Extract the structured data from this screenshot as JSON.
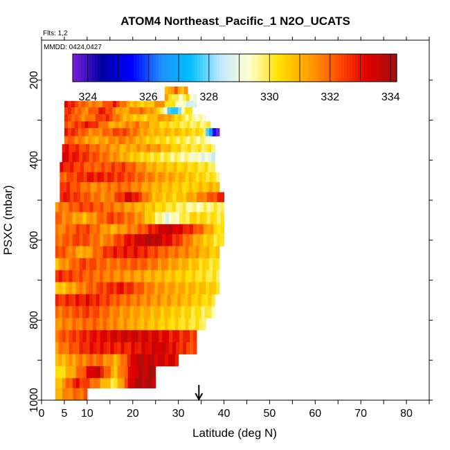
{
  "chart_data": {
    "type": "heatmap",
    "title": "ATOM4 Northeast_Pacific_1 N2O_UCATS",
    "subtitle_flights": "Flts: 1,2",
    "subtitle_dates": "MMDD: 0424,0427",
    "xlabel": "Latitude (deg N)",
    "ylabel": "PSXC (mbar)",
    "xlim": [
      0,
      85
    ],
    "ylim": [
      1000,
      100
    ],
    "x_ticks": [
      0,
      5,
      10,
      20,
      30,
      40,
      50,
      60,
      70,
      80
    ],
    "y_ticks": [
      200,
      400,
      600,
      800,
      1000
    ],
    "colorbar": {
      "min": 323.5,
      "max": 334.2,
      "ticks": [
        324,
        326,
        328,
        330,
        332,
        334
      ],
      "colors": [
        "#7a1fe0",
        "#0000a0",
        "#0000ff",
        "#1e90ff",
        "#00c0ff",
        "#bfe8ff",
        "#ffffd0",
        "#ffe000",
        "#ffa000",
        "#ff5000",
        "#e00000",
        "#a01010"
      ]
    },
    "marker": {
      "latitude": 34.5,
      "symbol": "arrow-up"
    },
    "bands": [
      {
        "p_top": 216,
        "p_bot": 235,
        "lat0": 27,
        "lat1": 32,
        "pattern": [
          330.5,
          331.5,
          332.0,
          330.8,
          331.2
        ]
      },
      {
        "p_top": 235,
        "p_bot": 252,
        "lat0": 27,
        "lat1": 34,
        "pattern": [
          331.0,
          330.0,
          329.5,
          330.2,
          329.0
        ]
      },
      {
        "p_top": 252,
        "p_bot": 268,
        "lat0": 5,
        "lat1": 27,
        "pattern": [
          333.2,
          332.0,
          331.5,
          332.8,
          331.0,
          330.5,
          331.8
        ]
      },
      {
        "p_top": 252,
        "p_bot": 268,
        "lat0": 27,
        "lat1": 34,
        "pattern": [
          330.5,
          329.8,
          329.0,
          328.5
        ]
      },
      {
        "p_top": 268,
        "p_bot": 285,
        "lat0": 5,
        "lat1": 26,
        "pattern": [
          332.8,
          331.5,
          333.0,
          331.0,
          332.0,
          330.8
        ]
      },
      {
        "p_top": 268,
        "p_bot": 285,
        "lat0": 26,
        "lat1": 33,
        "pattern": [
          330.0,
          328.0,
          327.2,
          329.5,
          330.5
        ]
      },
      {
        "p_top": 285,
        "p_bot": 303,
        "lat0": 5,
        "lat1": 36,
        "pattern": [
          332.5,
          331.5,
          332.8,
          331.0,
          330.5,
          331.5,
          330.0,
          329.2
        ]
      },
      {
        "p_top": 303,
        "p_bot": 320,
        "lat0": 5,
        "lat1": 37,
        "pattern": [
          332.0,
          333.0,
          331.0,
          331.8,
          330.5,
          330.0,
          329.8
        ]
      },
      {
        "p_top": 320,
        "p_bot": 340,
        "lat0": 5,
        "lat1": 36,
        "pattern": [
          333.0,
          331.5,
          332.5,
          331.0,
          330.8,
          330.2
        ]
      },
      {
        "p_top": 320,
        "p_bot": 340,
        "lat0": 36,
        "lat1": 39,
        "pattern": [
          328.0,
          323.8
        ]
      },
      {
        "p_top": 340,
        "p_bot": 360,
        "lat0": 5,
        "lat1": 37,
        "pattern": [
          332.2,
          331.0,
          331.8,
          330.5,
          330.0,
          329.5
        ]
      },
      {
        "p_top": 360,
        "p_bot": 380,
        "lat0": 4.5,
        "lat1": 38,
        "pattern": [
          333.0,
          332.0,
          331.0,
          331.5,
          330.2,
          330.0
        ]
      },
      {
        "p_top": 380,
        "p_bot": 405,
        "lat0": 4.5,
        "lat1": 38,
        "pattern": [
          333.2,
          332.5,
          331.5,
          330.5,
          330.0,
          329.5,
          328.8
        ]
      },
      {
        "p_top": 405,
        "p_bot": 430,
        "lat0": 4,
        "lat1": 38,
        "pattern": [
          333.0,
          332.0,
          332.5,
          331.0,
          330.5,
          330.0
        ]
      },
      {
        "p_top": 430,
        "p_bot": 455,
        "lat0": 4,
        "lat1": 39,
        "pattern": [
          332.0,
          333.0,
          332.5,
          331.5,
          330.8,
          330.0
        ]
      },
      {
        "p_top": 455,
        "p_bot": 480,
        "lat0": 4,
        "lat1": 39,
        "pattern": [
          332.8,
          331.5,
          332.0,
          331.0,
          330.5,
          331.0
        ]
      },
      {
        "p_top": 480,
        "p_bot": 505,
        "lat0": 4,
        "lat1": 40,
        "pattern": [
          333.0,
          332.2,
          331.5,
          333.5,
          331.0,
          330.5,
          331.5,
          332.8
        ]
      },
      {
        "p_top": 505,
        "p_bot": 530,
        "lat0": 3,
        "lat1": 40,
        "pattern": [
          331.5,
          332.5,
          331.8,
          331.0,
          330.2,
          329.5,
          330.0
        ]
      },
      {
        "p_top": 530,
        "p_bot": 560,
        "lat0": 3,
        "lat1": 40,
        "pattern": [
          332.0,
          331.0,
          332.5,
          331.5,
          329.0,
          330.5,
          330.0
        ]
      },
      {
        "p_top": 560,
        "p_bot": 585,
        "lat0": 3,
        "lat1": 40,
        "pattern": [
          331.5,
          332.5,
          331.0,
          332.0,
          333.8,
          332.5,
          330.0
        ]
      },
      {
        "p_top": 585,
        "p_bot": 615,
        "lat0": 3,
        "lat1": 40,
        "pattern": [
          331.8,
          332.5,
          331.5,
          333.0,
          334.0,
          332.8,
          331.0,
          330.0
        ]
      },
      {
        "p_top": 615,
        "p_bot": 645,
        "lat0": 3,
        "lat1": 39,
        "pattern": [
          332.5,
          331.0,
          332.8,
          333.0,
          332.0,
          331.5,
          330.5
        ]
      },
      {
        "p_top": 645,
        "p_bot": 675,
        "lat0": 3,
        "lat1": 39,
        "pattern": [
          331.0,
          332.5,
          331.8,
          332.2,
          331.5,
          330.8,
          330.0
        ]
      },
      {
        "p_top": 675,
        "p_bot": 705,
        "lat0": 3,
        "lat1": 39,
        "pattern": [
          332.8,
          332.0,
          331.5,
          331.0,
          330.5,
          330.0
        ]
      },
      {
        "p_top": 705,
        "p_bot": 735,
        "lat0": 3,
        "lat1": 39,
        "pattern": [
          330.5,
          332.0,
          333.0,
          331.5,
          331.0,
          330.5
        ]
      },
      {
        "p_top": 735,
        "p_bot": 765,
        "lat0": 3,
        "lat1": 38,
        "pattern": [
          332.5,
          333.0,
          332.0,
          331.5,
          331.0,
          330.2
        ]
      },
      {
        "p_top": 765,
        "p_bot": 795,
        "lat0": 3,
        "lat1": 38,
        "pattern": [
          331.8,
          332.5,
          331.5,
          331.0,
          330.5,
          329.8
        ]
      },
      {
        "p_top": 795,
        "p_bot": 825,
        "lat0": 3,
        "lat1": 36,
        "pattern": [
          331.5,
          332.0,
          331.2,
          330.5,
          330.0
        ]
      },
      {
        "p_top": 825,
        "p_bot": 855,
        "lat0": 3,
        "lat1": 34,
        "pattern": [
          332.0,
          333.0,
          333.5,
          333.2,
          332.5
        ]
      },
      {
        "p_top": 855,
        "p_bot": 885,
        "lat0": 3,
        "lat1": 34,
        "pattern": [
          331.5,
          333.0,
          332.8,
          333.5,
          332.2
        ]
      },
      {
        "p_top": 885,
        "p_bot": 915,
        "lat0": 3,
        "lat1": 30,
        "pattern": [
          330.8,
          331.5,
          332.0,
          331.0,
          333.8,
          333.5,
          333.2
        ]
      },
      {
        "p_top": 915,
        "p_bot": 945,
        "lat0": 3,
        "lat1": 25,
        "pattern": [
          330.0,
          331.5,
          333.8,
          330.8,
          333.5,
          334.0
        ]
      },
      {
        "p_top": 945,
        "p_bot": 970,
        "lat0": 3,
        "lat1": 25,
        "pattern": [
          330.5,
          333.0,
          331.8,
          330.0,
          334.0,
          333.8
        ]
      },
      {
        "p_top": 970,
        "p_bot": 1000,
        "lat0": 3,
        "lat1": 10,
        "pattern": [
          331.0,
          331.8,
          332.0
        ]
      }
    ]
  }
}
